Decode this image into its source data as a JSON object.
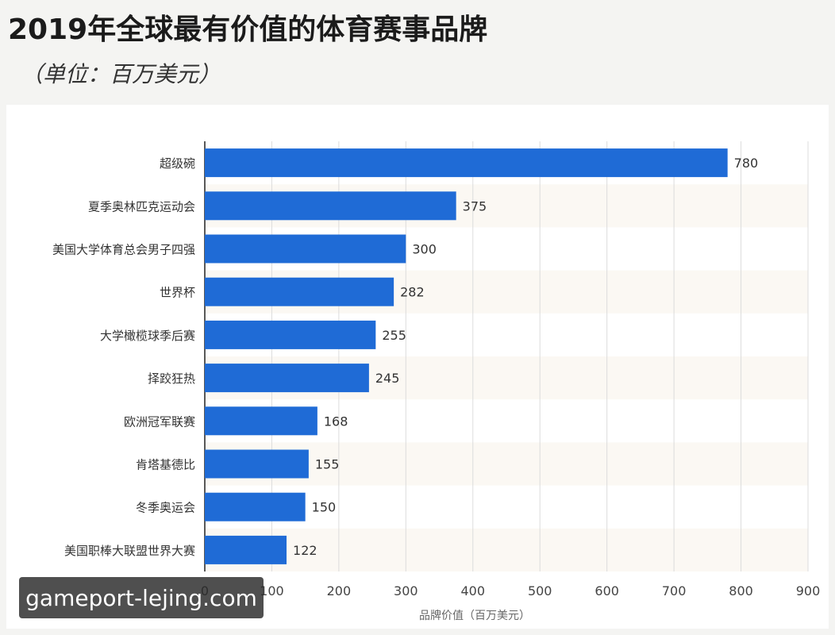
{
  "header": {
    "title": "2019年全球最有价值的体育赛事品牌",
    "subtitle": "（单位：百万美元）"
  },
  "watermark": {
    "text": "gameport-lejing.com"
  },
  "chart_data": {
    "type": "bar",
    "orientation": "horizontal",
    "title": "2019年全球最有价值的体育赛事品牌",
    "subtitle": "（单位：百万美元）",
    "xlabel": "品牌价值（百万美元）",
    "ylabel": "",
    "categories": [
      "超级碗",
      "夏季奥林匹克运动会",
      "美国大学体育总会男子四强",
      "世界杯",
      "大学橄榄球季后赛",
      "择跤狂热",
      "欧洲冠军联赛",
      "肯塔基德比",
      "冬季奥运会",
      "美国职棒大联盟世界大赛"
    ],
    "values": [
      780,
      375,
      300,
      282,
      255,
      245,
      168,
      155,
      150,
      122
    ],
    "xlim": [
      0,
      900
    ],
    "xticks": [
      0,
      100,
      200,
      300,
      400,
      500,
      600,
      700,
      800,
      900
    ],
    "grid": true,
    "legend": "none",
    "bar_color": "#1f6bd6"
  }
}
